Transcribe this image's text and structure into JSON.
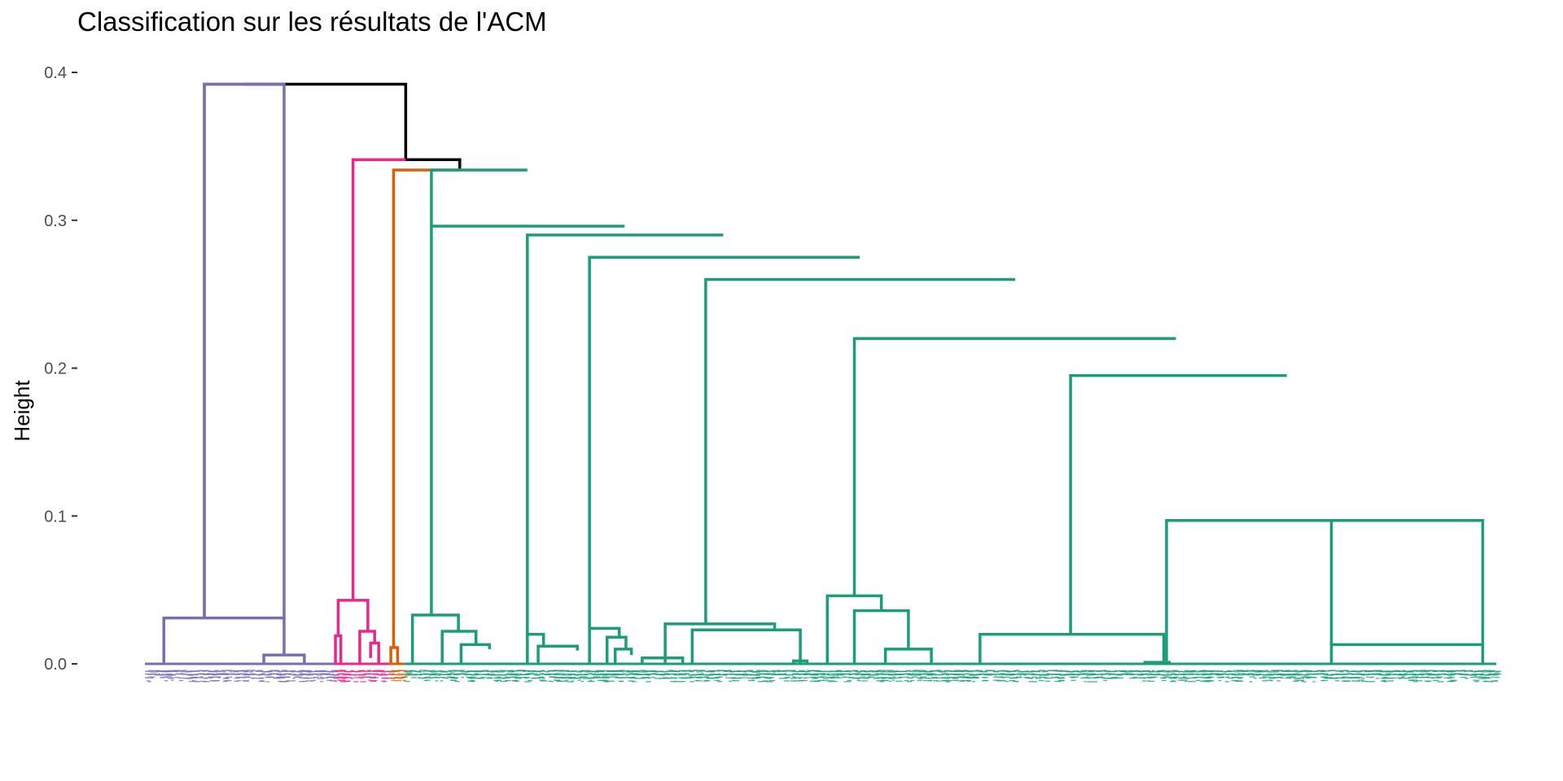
{
  "chart_data": {
    "type": "dendrogram",
    "title": "Classification sur les résultats de l'ACM",
    "xlabel": "",
    "ylabel": "Height",
    "ylim": [
      0,
      0.4
    ],
    "yticks": [
      "0.0",
      "0.1",
      "0.2",
      "0.3",
      "0.4"
    ],
    "grid": false,
    "x_range": [
      0,
      1000
    ],
    "clusters": [
      {
        "color": "#7570b3",
        "leaf_range": [
          0,
          140
        ],
        "leaf_label_colors": [
          "#7570b3"
        ]
      },
      {
        "color": "#e7298a",
        "leaf_range": [
          140,
          181
        ],
        "leaf_label_colors": [
          "#e7298a"
        ]
      },
      {
        "color": "#d95f02",
        "leaf_range": [
          181,
          192
        ],
        "leaf_label_colors": [
          "#d95f02"
        ]
      },
      {
        "color": "#1b9e77",
        "leaf_range": [
          192,
          1000
        ],
        "leaf_label_colors": [
          "#1b9e77"
        ]
      }
    ],
    "merges": [
      {
        "color": "#000000",
        "x1": 74,
        "x2": 193,
        "h": 0.392,
        "h1": 0.392,
        "h2": 0.341
      },
      {
        "color": "#000000",
        "x1": 154,
        "x2": 233,
        "h": 0.341,
        "h1": 0.341,
        "h2": 0.334
      },
      {
        "color": "#7570b3",
        "x1": 44,
        "x2": 103,
        "h": 0.392,
        "h1": 0.031,
        "h2": 0.392
      },
      {
        "color": "#7570b3",
        "x1": 44,
        "x2": 103,
        "h": 0.392,
        "h1": 0.031,
        "h2": 0.031
      },
      {
        "color": "#7570b3",
        "x1": 14,
        "x2": 103,
        "h": 0.031,
        "h1": 0.0,
        "h2": 0.006
      },
      {
        "color": "#7570b3",
        "x1": 88,
        "x2": 118,
        "h": 0.006,
        "h1": 0.0,
        "h2": 0.0
      },
      {
        "color": "#e7298a",
        "x1": 154,
        "x2": 193,
        "h": 0.341,
        "h1": 0.043,
        "h2": 0.341
      },
      {
        "color": "#e7298a",
        "x1": 143,
        "x2": 165,
        "h": 0.043,
        "h1": 0.019,
        "h2": 0.022
      },
      {
        "color": "#e7298a",
        "x1": 141,
        "x2": 145,
        "h": 0.019,
        "h1": 0.0,
        "h2": 0.0
      },
      {
        "color": "#e7298a",
        "x1": 159,
        "x2": 170,
        "h": 0.022,
        "h1": 0.0,
        "h2": 0.014
      },
      {
        "color": "#e7298a",
        "x1": 167,
        "x2": 173,
        "h": 0.014,
        "h1": 0.004,
        "h2": 0.0
      },
      {
        "color": "#d95f02",
        "x1": 184,
        "x2": 233,
        "h": 0.334,
        "h1": 0.011,
        "h2": 0.334
      },
      {
        "color": "#d95f02",
        "x1": 182,
        "x2": 187,
        "h": 0.011,
        "h1": 0.0,
        "h2": 0.0
      },
      {
        "color": "#1b9e77",
        "x1": 212,
        "x2": 283,
        "h": 0.334,
        "h1": 0.296,
        "h2": 0.334
      },
      {
        "color": "#1b9e77",
        "x1": 212,
        "x2": 355,
        "h": 0.296,
        "h1": 0.033,
        "h2": 0.296
      },
      {
        "color": "#1b9e77",
        "x1": 283,
        "x2": 428,
        "h": 0.29,
        "h1": 0.02,
        "h2": 0.29
      },
      {
        "color": "#1b9e77",
        "x1": 329,
        "x2": 529,
        "h": 0.275,
        "h1": 0.024,
        "h2": 0.275
      },
      {
        "color": "#1b9e77",
        "x1": 415,
        "x2": 644,
        "h": 0.26,
        "h1": 0.027,
        "h2": 0.26
      },
      {
        "color": "#1b9e77",
        "x1": 525,
        "x2": 763,
        "h": 0.22,
        "h1": 0.046,
        "h2": 0.22
      },
      {
        "color": "#1b9e77",
        "x1": 685,
        "x2": 845,
        "h": 0.195,
        "h1": 0.02,
        "h2": 0.195
      },
      {
        "color": "#1b9e77",
        "x1": 756,
        "x2": 934,
        "h": 0.097,
        "h1": 0.002,
        "h2": 0.097
      },
      {
        "color": "#1b9e77",
        "x1": 878,
        "x2": 990,
        "h": 0.097,
        "h1": 0.013,
        "h2": 0.013
      },
      {
        "color": "#1b9e77",
        "x1": 198,
        "x2": 232,
        "h": 0.033,
        "h1": 0.0,
        "h2": 0.022
      },
      {
        "color": "#1b9e77",
        "x1": 220,
        "x2": 245,
        "h": 0.022,
        "h1": 0.0,
        "h2": 0.013
      },
      {
        "color": "#1b9e77",
        "x1": 234,
        "x2": 255,
        "h": 0.013,
        "h1": 0.0,
        "h2": 0.01
      },
      {
        "color": "#1b9e77",
        "x1": 283,
        "x2": 295,
        "h": 0.02,
        "h1": 0.0,
        "h2": 0.012
      },
      {
        "color": "#1b9e77",
        "x1": 291,
        "x2": 320,
        "h": 0.012,
        "h1": 0.0,
        "h2": 0.009
      },
      {
        "color": "#1b9e77",
        "x1": 329,
        "x2": 351,
        "h": 0.024,
        "h1": 0.0,
        "h2": 0.018
      },
      {
        "color": "#1b9e77",
        "x1": 342,
        "x2": 356,
        "h": 0.018,
        "h1": 0.0,
        "h2": 0.01
      },
      {
        "color": "#1b9e77",
        "x1": 348,
        "x2": 360,
        "h": 0.01,
        "h1": 0.0,
        "h2": 0.006
      },
      {
        "color": "#1b9e77",
        "x1": 368,
        "x2": 398,
        "h": 0.004,
        "h1": 0.0,
        "h2": 0.0
      },
      {
        "color": "#1b9e77",
        "x1": 385,
        "x2": 466,
        "h": 0.027,
        "h1": 0.0,
        "h2": 0.023
      },
      {
        "color": "#1b9e77",
        "x1": 405,
        "x2": 485,
        "h": 0.023,
        "h1": 0.0,
        "h2": 0.0
      },
      {
        "color": "#1b9e77",
        "x1": 480,
        "x2": 490,
        "h": 0.002,
        "h1": 0.0,
        "h2": 0.0
      },
      {
        "color": "#1b9e77",
        "x1": 505,
        "x2": 545,
        "h": 0.046,
        "h1": 0.0,
        "h2": 0.036
      },
      {
        "color": "#1b9e77",
        "x1": 525,
        "x2": 565,
        "h": 0.036,
        "h1": 0.0,
        "h2": 0.01
      },
      {
        "color": "#1b9e77",
        "x1": 548,
        "x2": 582,
        "h": 0.01,
        "h1": 0.0,
        "h2": 0.0
      },
      {
        "color": "#1b9e77",
        "x1": 618,
        "x2": 754,
        "h": 0.02,
        "h1": 0.0,
        "h2": 0.0
      },
      {
        "color": "#1b9e77",
        "x1": 740,
        "x2": 758,
        "h": 0.001,
        "h1": 0.0,
        "h2": 0.0
      },
      {
        "color": "#1b9e77",
        "x1": 878,
        "x2": 990,
        "h": 0.013,
        "h1": 0.0,
        "h2": 0.0
      }
    ]
  }
}
